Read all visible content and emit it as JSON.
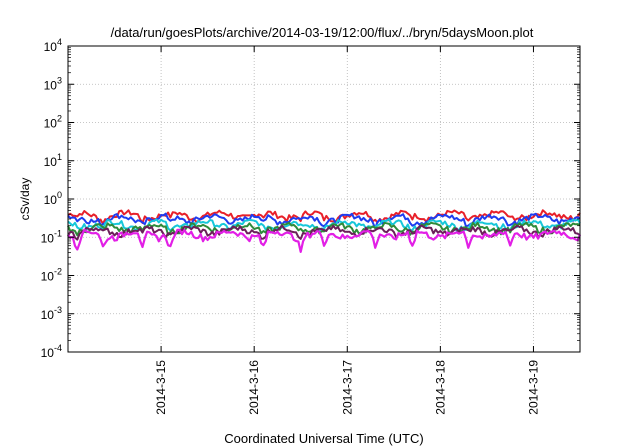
{
  "chart_data": {
    "type": "line",
    "title": "/data/run/goesPlots/archive/2014-03-19/12:00/flux/../bryn/5daysMoon.plot",
    "xlabel": "Coordinated Universal Time (UTC)",
    "ylabel": "cSv/day",
    "yscale": "log",
    "ylim": [
      "1e-4",
      "1e4"
    ],
    "y_ticks": [
      {
        "base": "10",
        "exp": "4"
      },
      {
        "base": "10",
        "exp": "3"
      },
      {
        "base": "10",
        "exp": "2"
      },
      {
        "base": "10",
        "exp": "1"
      },
      {
        "base": "10",
        "exp": "0"
      },
      {
        "base": "10",
        "exp": "-1"
      },
      {
        "base": "10",
        "exp": "-2"
      },
      {
        "base": "10",
        "exp": "-3"
      },
      {
        "base": "10",
        "exp": "-4"
      }
    ],
    "xlim": [
      "2014-03-14 00:00",
      "2014-03-19 12:00"
    ],
    "x_ticks": [
      "2014-3-15",
      "2014-3-16",
      "2014-3-17",
      "2014-3-18",
      "2014-3-19"
    ],
    "grid": true,
    "legend": "none",
    "series": [
      {
        "color": "#e8202a",
        "level": 0.38,
        "dips": false
      },
      {
        "color": "#1f3cf0",
        "level": 0.31,
        "dips": false
      },
      {
        "color": "#16c7d9",
        "level": 0.22,
        "dips": false
      },
      {
        "color": "#2e8b3a",
        "level": 0.18,
        "dips": false
      },
      {
        "color": "#6b1f5a",
        "level": 0.15,
        "dips": false
      },
      {
        "color": "#e21fe6",
        "level": 0.12,
        "dips": true
      }
    ],
    "dip_days": [
      0.1,
      0.38,
      0.8,
      1.1,
      2.1,
      2.5,
      2.75,
      3.3,
      3.7,
      4.3,
      4.75
    ]
  }
}
